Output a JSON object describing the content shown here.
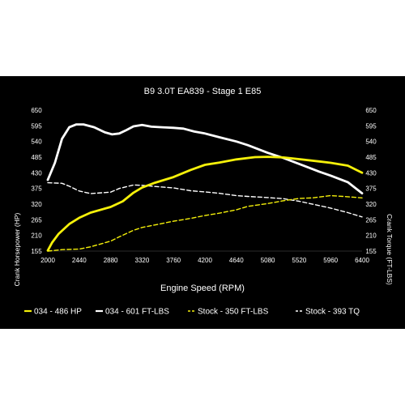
{
  "chart_data": {
    "type": "line",
    "title": "B9 3.0T EA839 - Stage 1 E85",
    "xlabel": "Engine Speed (RPM)",
    "ylabel_left": "Crank Horsepower (HP)",
    "ylabel_right": "Crank Torque (FT-LBS)",
    "xlim": [
      2000,
      6400
    ],
    "ylim": [
      155,
      650
    ],
    "x_ticks": [
      2000,
      2440,
      2880,
      3320,
      3760,
      4200,
      4640,
      5080,
      5520,
      5960,
      6400
    ],
    "y_ticks": [
      155,
      210,
      265,
      320,
      375,
      430,
      485,
      540,
      595,
      650
    ],
    "grid": false,
    "legend_position": "bottom",
    "series": [
      {
        "name": "034 - 486 HP",
        "color": "#f5f00a",
        "style": "solid",
        "points": [
          [
            2000,
            157
          ],
          [
            2060,
            185
          ],
          [
            2150,
            215
          ],
          [
            2300,
            250
          ],
          [
            2440,
            272
          ],
          [
            2600,
            290
          ],
          [
            2880,
            310
          ],
          [
            3050,
            330
          ],
          [
            3200,
            360
          ],
          [
            3320,
            378
          ],
          [
            3500,
            395
          ],
          [
            3760,
            415
          ],
          [
            4000,
            440
          ],
          [
            4200,
            458
          ],
          [
            4400,
            466
          ],
          [
            4640,
            477
          ],
          [
            4900,
            485
          ],
          [
            5080,
            486
          ],
          [
            5300,
            484
          ],
          [
            5520,
            478
          ],
          [
            5800,
            470
          ],
          [
            5960,
            465
          ],
          [
            6200,
            455
          ],
          [
            6400,
            430
          ]
        ]
      },
      {
        "name": "034 - 601 FT-LBS",
        "color": "#ffffff",
        "style": "solid",
        "points": [
          [
            2000,
            405
          ],
          [
            2100,
            465
          ],
          [
            2200,
            550
          ],
          [
            2300,
            590
          ],
          [
            2400,
            600
          ],
          [
            2500,
            600
          ],
          [
            2650,
            590
          ],
          [
            2800,
            572
          ],
          [
            2900,
            565
          ],
          [
            3000,
            568
          ],
          [
            3100,
            580
          ],
          [
            3200,
            593
          ],
          [
            3320,
            598
          ],
          [
            3450,
            592
          ],
          [
            3600,
            590
          ],
          [
            3760,
            588
          ],
          [
            3900,
            585
          ],
          [
            4050,
            575
          ],
          [
            4200,
            568
          ],
          [
            4400,
            555
          ],
          [
            4640,
            540
          ],
          [
            4800,
            527
          ],
          [
            5080,
            500
          ],
          [
            5300,
            482
          ],
          [
            5520,
            461
          ],
          [
            5800,
            434
          ],
          [
            5960,
            420
          ],
          [
            6200,
            397
          ],
          [
            6400,
            358
          ]
        ]
      },
      {
        "name": "Stock - 350 FT-LBS",
        "color": "#f5f00a",
        "style": "dashed",
        "points": [
          [
            2000,
            155
          ],
          [
            2200,
            160
          ],
          [
            2440,
            162
          ],
          [
            2600,
            170
          ],
          [
            2880,
            190
          ],
          [
            3000,
            205
          ],
          [
            3200,
            228
          ],
          [
            3320,
            238
          ],
          [
            3500,
            247
          ],
          [
            3760,
            260
          ],
          [
            4000,
            270
          ],
          [
            4200,
            280
          ],
          [
            4400,
            288
          ],
          [
            4640,
            300
          ],
          [
            4800,
            312
          ],
          [
            5080,
            322
          ],
          [
            5300,
            332
          ],
          [
            5520,
            340
          ],
          [
            5700,
            342
          ],
          [
            5960,
            350
          ],
          [
            6200,
            346
          ],
          [
            6400,
            342
          ]
        ]
      },
      {
        "name": "Stock - 393 TQ",
        "color": "#ffffff",
        "style": "dashed",
        "points": [
          [
            2000,
            395
          ],
          [
            2200,
            393
          ],
          [
            2300,
            383
          ],
          [
            2440,
            366
          ],
          [
            2600,
            357
          ],
          [
            2880,
            362
          ],
          [
            3000,
            375
          ],
          [
            3200,
            387
          ],
          [
            3320,
            386
          ],
          [
            3500,
            382
          ],
          [
            3760,
            377
          ],
          [
            4000,
            367
          ],
          [
            4200,
            363
          ],
          [
            4400,
            358
          ],
          [
            4640,
            350
          ],
          [
            4800,
            347
          ],
          [
            5080,
            343
          ],
          [
            5300,
            339
          ],
          [
            5520,
            330
          ],
          [
            5800,
            315
          ],
          [
            5960,
            306
          ],
          [
            6200,
            290
          ],
          [
            6400,
            275
          ]
        ]
      }
    ]
  }
}
